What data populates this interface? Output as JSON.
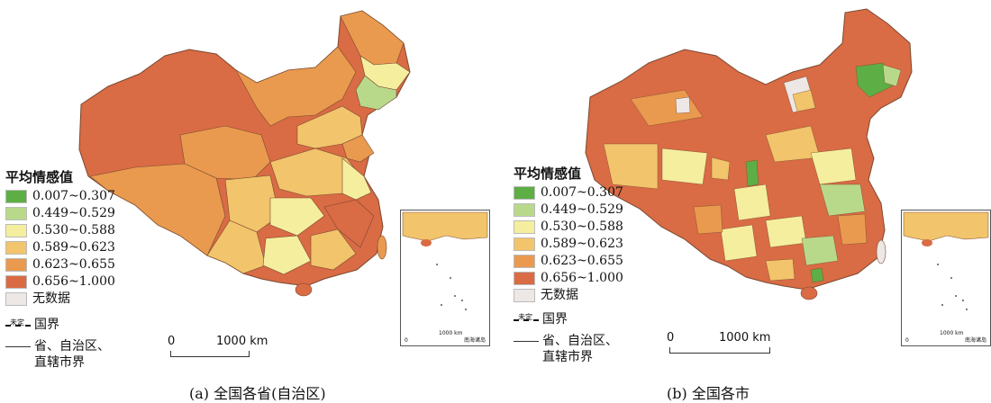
{
  "legend": {
    "title": "平均情感值",
    "classes": [
      {
        "label": "0.007~0.307",
        "color": "#5dae44"
      },
      {
        "label": "0.449~0.529",
        "color": "#b9d98a"
      },
      {
        "label": "0.530~0.588",
        "color": "#f5ee9e"
      },
      {
        "label": "0.589~0.623",
        "color": "#f2c46b"
      },
      {
        "label": "0.623~0.655",
        "color": "#e99a4e"
      },
      {
        "label": "0.656~1.000",
        "color": "#d96b45"
      },
      {
        "label": "无数据",
        "color": "#ede8e6"
      }
    ]
  },
  "boundaries": {
    "national_sub": "未定",
    "national": "国界",
    "provincial_line1": "省、自治区、",
    "provincial_line2": "直辖市界"
  },
  "scale": {
    "zero": "0",
    "distance": "1000 km"
  },
  "inset": {
    "zero": "0",
    "distance": "1000 km",
    "title": "南海诸岛"
  },
  "panels": {
    "a_caption": "(a) 全国各省(自治区)",
    "b_caption": "(b) 全国各市"
  }
}
